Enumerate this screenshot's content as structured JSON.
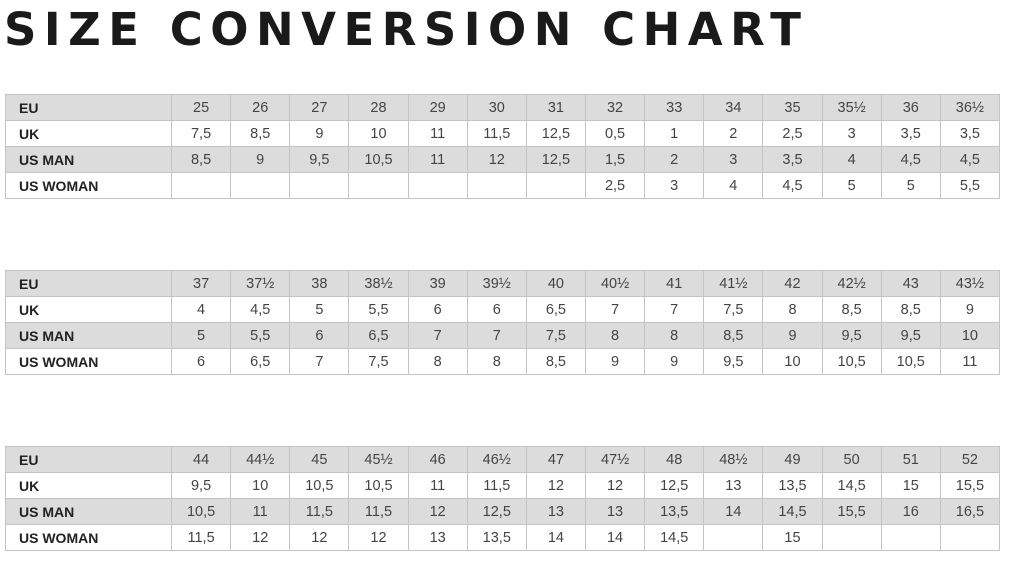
{
  "title": "SIZE CONVERSION CHART",
  "colors": {
    "shaded_row": "#dcdcdc",
    "border": "#c4c4c4"
  },
  "tables": [
    {
      "rows": [
        {
          "label": "EU",
          "values": [
            "25",
            "26",
            "27",
            "28",
            "29",
            "30",
            "31",
            "32",
            "33",
            "34",
            "35",
            "35½",
            "36",
            "36½"
          ]
        },
        {
          "label": "UK",
          "values": [
            "7,5",
            "8,5",
            "9",
            "10",
            "11",
            "11,5",
            "12,5",
            "0,5",
            "1",
            "2",
            "2,5",
            "3",
            "3,5",
            "3,5"
          ]
        },
        {
          "label": "US MAN",
          "values": [
            "8,5",
            "9",
            "9,5",
            "10,5",
            "11",
            "12",
            "12,5",
            "1,5",
            "2",
            "3",
            "3,5",
            "4",
            "4,5",
            "4,5"
          ]
        },
        {
          "label": "US WOMAN",
          "values": [
            "",
            "",
            "",
            "",
            "",
            "",
            "",
            "2,5",
            "3",
            "4",
            "4,5",
            "5",
            "5",
            "5,5"
          ]
        }
      ]
    },
    {
      "rows": [
        {
          "label": "EU",
          "values": [
            "37",
            "37½",
            "38",
            "38½",
            "39",
            "39½",
            "40",
            "40½",
            "41",
            "41½",
            "42",
            "42½",
            "43",
            "43½"
          ]
        },
        {
          "label": "UK",
          "values": [
            "4",
            "4,5",
            "5",
            "5,5",
            "6",
            "6",
            "6,5",
            "7",
            "7",
            "7,5",
            "8",
            "8,5",
            "8,5",
            "9"
          ]
        },
        {
          "label": "US MAN",
          "values": [
            "5",
            "5,5",
            "6",
            "6,5",
            "7",
            "7",
            "7,5",
            "8",
            "8",
            "8,5",
            "9",
            "9,5",
            "9,5",
            "10"
          ]
        },
        {
          "label": "US WOMAN",
          "values": [
            "6",
            "6,5",
            "7",
            "7,5",
            "8",
            "8",
            "8,5",
            "9",
            "9",
            "9,5",
            "10",
            "10,5",
            "10,5",
            "11"
          ]
        }
      ]
    },
    {
      "rows": [
        {
          "label": "EU",
          "values": [
            "44",
            "44½",
            "45",
            "45½",
            "46",
            "46½",
            "47",
            "47½",
            "48",
            "48½",
            "49",
            "50",
            "51",
            "52"
          ]
        },
        {
          "label": "UK",
          "values": [
            "9,5",
            "10",
            "10,5",
            "10,5",
            "11",
            "11,5",
            "12",
            "12",
            "12,5",
            "13",
            "13,5",
            "14,5",
            "15",
            "15,5"
          ]
        },
        {
          "label": "US MAN",
          "values": [
            "10,5",
            "11",
            "11,5",
            "11,5",
            "12",
            "12,5",
            "13",
            "13",
            "13,5",
            "14",
            "14,5",
            "15,5",
            "16",
            "16,5"
          ]
        },
        {
          "label": "US WOMAN",
          "values": [
            "11,5",
            "12",
            "12",
            "12",
            "13",
            "13,5",
            "14",
            "14",
            "14,5",
            "",
            "15",
            "",
            "",
            ""
          ]
        }
      ]
    }
  ]
}
